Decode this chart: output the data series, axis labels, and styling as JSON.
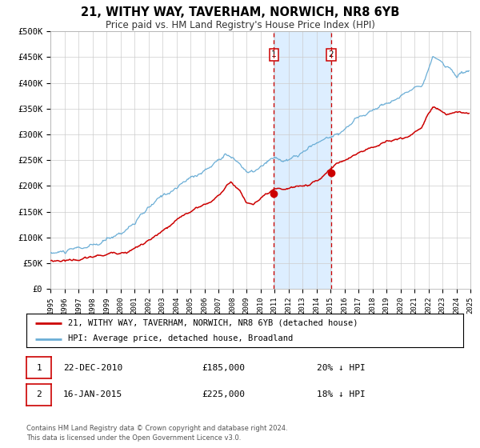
{
  "title": "21, WITHY WAY, TAVERHAM, NORWICH, NR8 6YB",
  "subtitle": "Price paid vs. HM Land Registry's House Price Index (HPI)",
  "legend_line1": "21, WITHY WAY, TAVERHAM, NORWICH, NR8 6YB (detached house)",
  "legend_line2": "HPI: Average price, detached house, Broadland",
  "footer_line1": "Contains HM Land Registry data © Crown copyright and database right 2024.",
  "footer_line2": "This data is licensed under the Open Government Licence v3.0.",
  "sale1_date_str": "22-DEC-2010",
  "sale1_price_str": "£185,000",
  "sale1_hpi_str": "20% ↓ HPI",
  "sale1_date_num": 2010.97,
  "sale1_price_val": 185000,
  "sale2_date_str": "16-JAN-2015",
  "sale2_price_str": "£225,000",
  "sale2_hpi_str": "18% ↓ HPI",
  "sale2_date_num": 2015.04,
  "sale2_price_val": 225000,
  "xmin": 1995,
  "xmax": 2025,
  "ymin": 0,
  "ymax": 500000,
  "yticks": [
    0,
    50000,
    100000,
    150000,
    200000,
    250000,
    300000,
    350000,
    400000,
    450000,
    500000
  ],
  "ytick_labels": [
    "£0",
    "£50K",
    "£100K",
    "£150K",
    "£200K",
    "£250K",
    "£300K",
    "£350K",
    "£400K",
    "£450K",
    "£500K"
  ],
  "xticks": [
    1995,
    1996,
    1997,
    1998,
    1999,
    2000,
    2001,
    2002,
    2003,
    2004,
    2005,
    2006,
    2007,
    2008,
    2009,
    2010,
    2011,
    2012,
    2013,
    2014,
    2015,
    2016,
    2017,
    2018,
    2019,
    2020,
    2021,
    2022,
    2023,
    2024,
    2025
  ],
  "hpi_color": "#6baed6",
  "price_color": "#cc0000",
  "shade_color": "#ddeeff",
  "dashed_color": "#cc0000",
  "grid_color": "#cccccc",
  "bg_color": "#ffffff"
}
